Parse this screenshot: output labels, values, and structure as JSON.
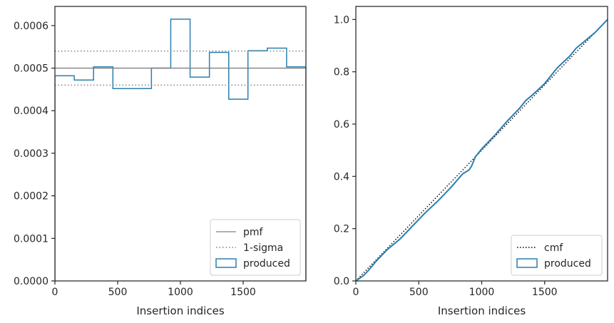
{
  "colors": {
    "produced": "#2a7fb0",
    "pmf": "#808080",
    "sigma": "#808080",
    "cmf": "#000000",
    "frame": "#262626",
    "legend_border": "#cccccc"
  },
  "chart_data": [
    {
      "type": "histogram-step",
      "title": "",
      "xlabel": "Insertion indices",
      "ylabel": "",
      "xlim": [
        0,
        2000
      ],
      "ylim": [
        0,
        0.000645
      ],
      "xticks": [
        0,
        500,
        1000,
        1500
      ],
      "xtick_labels": [
        "0",
        "500",
        "1000",
        "1500"
      ],
      "yticks": [
        0,
        0.0001,
        0.0002,
        0.0003,
        0.0004,
        0.0005,
        0.0006
      ],
      "ytick_labels": [
        "0.0000",
        "0.0001",
        "0.0002",
        "0.0003",
        "0.0004",
        "0.0005",
        "0.0006"
      ],
      "series": [
        {
          "name": "produced",
          "style": "step",
          "bin_edges": [
            0,
            154,
            308,
            462,
            615,
            769,
            923,
            1077,
            1231,
            1385,
            1538,
            1692,
            1846,
            2000
          ],
          "values": [
            0.000482,
            0.000472,
            0.000503,
            0.000452,
            0.000452,
            0.0005,
            0.000615,
            0.000479,
            0.000537,
            0.000427,
            0.000541,
            0.000547,
            0.000503
          ]
        },
        {
          "name": "pmf",
          "style": "solid",
          "y": 0.0005
        },
        {
          "name": "1-sigma",
          "style": "dotted",
          "y": [
            0.00054,
            0.00046
          ]
        }
      ],
      "legend": {
        "position": "bottom-right",
        "entries": [
          "pmf",
          "1-sigma",
          "produced"
        ]
      }
    },
    {
      "type": "line",
      "title": "",
      "xlabel": "Insertion indices",
      "ylabel": "",
      "xlim": [
        0,
        2000
      ],
      "ylim": [
        0,
        1.05
      ],
      "xticks": [
        0,
        500,
        1000,
        1500
      ],
      "xtick_labels": [
        "0",
        "500",
        "1000",
        "1500"
      ],
      "yticks": [
        0,
        0.2,
        0.4,
        0.6,
        0.8,
        1.0
      ],
      "ytick_labels": [
        "0.0",
        "0.2",
        "0.4",
        "0.6",
        "0.8",
        "1.0"
      ],
      "series": [
        {
          "name": "cmf",
          "style": "dotted",
          "x": [
            0,
            2000
          ],
          "y": [
            0,
            1.0
          ]
        },
        {
          "name": "produced",
          "style": "solid",
          "x": [
            0,
            60,
            100,
            160,
            250,
            350,
            450,
            550,
            650,
            750,
            850,
            900,
            920,
            950,
            1000,
            1100,
            1200,
            1300,
            1350,
            1400,
            1500,
            1550,
            1600,
            1700,
            1750,
            1800,
            1900,
            2000
          ],
          "y": [
            0,
            0.02,
            0.04,
            0.075,
            0.12,
            0.16,
            0.21,
            0.26,
            0.305,
            0.355,
            0.41,
            0.425,
            0.44,
            0.475,
            0.505,
            0.555,
            0.61,
            0.66,
            0.69,
            0.71,
            0.755,
            0.785,
            0.815,
            0.86,
            0.89,
            0.91,
            0.95,
            1.0
          ]
        }
      ],
      "legend": {
        "position": "bottom-right",
        "entries": [
          "cmf",
          "produced"
        ]
      }
    }
  ]
}
